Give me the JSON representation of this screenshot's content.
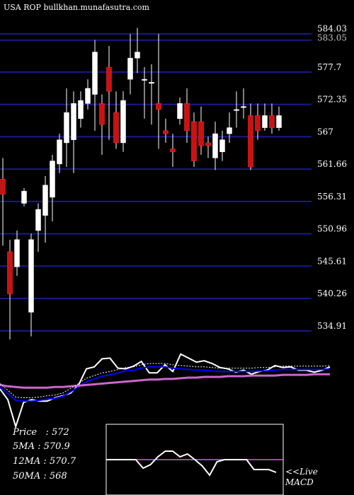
{
  "header": {
    "watermark": "USA ROP bullkhan.munafasutra.com"
  },
  "stats": {
    "price": "Price   : 572",
    "ma5": "5MA : 570.9",
    "ma12": "12MA : 570.7",
    "ma50": "50MA : 568"
  },
  "live_label_1": "<<Live",
  "live_label_2": "MACD",
  "colors": {
    "background": "#000000",
    "grid": "#1a1a8c",
    "bull": "#ffffff",
    "bear": "#cc1111",
    "ma_fast": "#0000ff",
    "ma_slow": "#cc66cc",
    "macd": "#ffffff"
  },
  "chart_data": [
    {
      "type": "candlestick",
      "title": "",
      "y_ticks": [
        584.03,
        577.7,
        572.35,
        567,
        561.66,
        556.31,
        550.96,
        545.61,
        540.26,
        534.91
      ],
      "y_tick_labels": [
        "584.03",
        "577.7",
        "572.35",
        "567",
        "561.66",
        "556.31",
        "550.96",
        "545.61",
        "540.26",
        "534.91"
      ],
      "extra_top_tick_label": "583.05",
      "ylim": [
        533.5,
        587.5
      ],
      "grid": true,
      "candles": [
        {
          "o": 560.0,
          "c": 557.5,
          "h": 563.5,
          "l": 549.0
        },
        {
          "o": 548.0,
          "c": 541.0,
          "h": 550.0,
          "l": 533.5
        },
        {
          "o": 545.5,
          "c": 550.0,
          "h": 551.5,
          "l": 544.0
        },
        {
          "o": 556.0,
          "c": 558.0,
          "h": 558.5,
          "l": 555.5
        },
        {
          "o": 538.0,
          "c": 550.0,
          "h": 551.0,
          "l": 534.0
        },
        {
          "o": 551.5,
          "c": 555.0,
          "h": 556.0,
          "l": 548.0
        },
        {
          "o": 554.0,
          "c": 559.0,
          "h": 560.5,
          "l": 549.5
        },
        {
          "o": 557.0,
          "c": 563.0,
          "h": 564.0,
          "l": 553.0
        },
        {
          "o": 562.5,
          "c": 566.5,
          "h": 567.5,
          "l": 561.0
        },
        {
          "o": 566.0,
          "c": 571.0,
          "h": 575.0,
          "l": 562.0
        },
        {
          "o": 566.5,
          "c": 572.5,
          "h": 574.5,
          "l": 561.0
        },
        {
          "o": 570.0,
          "c": 573.0,
          "h": 574.5,
          "l": 568.5
        },
        {
          "o": 572.5,
          "c": 575.0,
          "h": 576.5,
          "l": 571.5
        },
        {
          "o": 574.0,
          "c": 581.0,
          "h": 583.0,
          "l": 568.0
        },
        {
          "o": 572.5,
          "c": 569.0,
          "h": 574.0,
          "l": 564.0
        },
        {
          "o": 578.5,
          "c": 574.5,
          "h": 582.0,
          "l": 566.5
        },
        {
          "o": 571.0,
          "c": 566.0,
          "h": 574.5,
          "l": 565.0
        },
        {
          "o": 566.0,
          "c": 573.0,
          "h": 574.5,
          "l": 564.5
        },
        {
          "o": 576.5,
          "c": 580.0,
          "h": 584.0,
          "l": 574.0
        },
        {
          "o": 580.0,
          "c": 581.0,
          "h": 585.0,
          "l": 577.5
        },
        {
          "o": 576.5,
          "c": 576.5,
          "h": 578.5,
          "l": 570.0
        },
        {
          "o": 576.0,
          "c": 576.0,
          "h": 579.0,
          "l": 569.0
        },
        {
          "o": 572.5,
          "c": 571.5,
          "h": 584.0,
          "l": 565.0
        },
        {
          "o": 568.0,
          "c": 567.5,
          "h": 570.0,
          "l": 566.0
        },
        {
          "o": 565.0,
          "c": 564.5,
          "h": 567.5,
          "l": 562.0
        },
        {
          "o": 570.0,
          "c": 572.5,
          "h": 573.5,
          "l": 569.0
        },
        {
          "o": 572.5,
          "c": 568.0,
          "h": 575.0,
          "l": 566.0
        },
        {
          "o": 569.5,
          "c": 563.0,
          "h": 571.0,
          "l": 562.0
        },
        {
          "o": 569.5,
          "c": 565.5,
          "h": 572.0,
          "l": 564.0
        },
        {
          "o": 566.0,
          "c": 565.5,
          "h": 567.0,
          "l": 563.5
        },
        {
          "o": 563.5,
          "c": 567.5,
          "h": 569.5,
          "l": 561.5
        },
        {
          "o": 564.5,
          "c": 566.5,
          "h": 568.0,
          "l": 563.0
        },
        {
          "o": 567.5,
          "c": 568.5,
          "h": 571.0,
          "l": 566.0
        },
        {
          "o": 571.5,
          "c": 571.5,
          "h": 574.5,
          "l": 568.5
        },
        {
          "o": 572.0,
          "c": 572.0,
          "h": 575.0,
          "l": 570.0
        },
        {
          "o": 570.5,
          "c": 562.0,
          "h": 572.5,
          "l": 561.5
        },
        {
          "o": 570.5,
          "c": 568.0,
          "h": 572.5,
          "l": 566.5
        },
        {
          "o": 568.5,
          "c": 570.5,
          "h": 572.5,
          "l": 568.0
        },
        {
          "o": 570.5,
          "c": 568.5,
          "h": 572.5,
          "l": 567.5
        },
        {
          "o": 568.5,
          "c": 570.5,
          "h": 572.0,
          "l": 568.0
        }
      ]
    },
    {
      "type": "line",
      "title": "",
      "ylim": [
        0,
        1
      ],
      "series": [
        {
          "name": "",
          "color": "#ffffff",
          "values": [
            0.42,
            0.26,
            -0.14,
            0.22,
            0.26,
            0.24,
            0.24,
            0.29,
            0.32,
            0.36,
            0.48,
            0.72,
            0.75,
            0.87,
            0.88,
            0.73,
            0.72,
            0.76,
            0.83,
            0.66,
            0.66,
            0.78,
            0.68,
            0.94,
            0.88,
            0.82,
            0.84,
            0.8,
            0.74,
            0.72,
            0.67,
            0.7,
            0.64,
            0.68,
            0.7,
            0.77,
            0.74,
            0.75,
            0.7,
            0.7,
            0.67,
            0.7,
            0.75
          ]
        },
        {
          "name": "",
          "color": "#0000ff",
          "values": [
            0.45,
            0.35,
            0.25,
            0.24,
            0.24,
            0.25,
            0.27,
            0.28,
            0.31,
            0.38,
            0.45,
            0.53,
            0.57,
            0.61,
            0.63,
            0.66,
            0.69,
            0.7,
            0.73,
            0.75,
            0.75,
            0.75,
            0.73,
            0.72,
            0.71,
            0.7,
            0.7,
            0.69,
            0.68,
            0.68,
            0.68,
            0.68,
            0.68,
            0.69,
            0.69,
            0.7,
            0.71,
            0.71,
            0.71,
            0.71,
            0.71,
            0.71,
            0.72
          ]
        },
        {
          "name": "",
          "color": "#cc66cc",
          "values": [
            0.48,
            0.46,
            0.45,
            0.44,
            0.44,
            0.44,
            0.44,
            0.45,
            0.45,
            0.46,
            0.47,
            0.48,
            0.49,
            0.5,
            0.51,
            0.52,
            0.53,
            0.54,
            0.55,
            0.56,
            0.56,
            0.57,
            0.57,
            0.58,
            0.59,
            0.59,
            0.6,
            0.6,
            0.6,
            0.61,
            0.61,
            0.61,
            0.62,
            0.62,
            0.62,
            0.62,
            0.63,
            0.63,
            0.63,
            0.63,
            0.64,
            0.64,
            0.64
          ]
        }
      ]
    },
    {
      "type": "line",
      "title": "MACD",
      "ylim": [
        0,
        1
      ],
      "zero_line": 0.5,
      "series": [
        {
          "name": "",
          "color": "#ffffff",
          "values": [
            0.5,
            0.5,
            0.5,
            0.5,
            0.5,
            0.38,
            0.43,
            0.54,
            0.62,
            0.62,
            0.54,
            0.58,
            0.5,
            0.41,
            0.28,
            0.47,
            0.5,
            0.5,
            0.5,
            0.5,
            0.36,
            0.36,
            0.36,
            0.32
          ]
        }
      ]
    }
  ]
}
